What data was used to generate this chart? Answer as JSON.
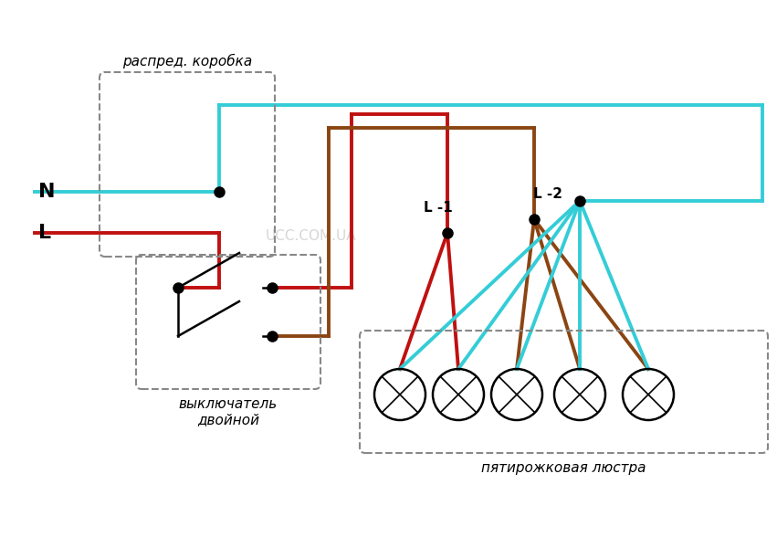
{
  "bg_color": "#ffffff",
  "cyan": "#34cdd7",
  "red": "#c01010",
  "brown": "#8B4513",
  "black": "#000000",
  "label_N": "N",
  "label_L": "L",
  "label_L1": "L -1",
  "label_L2": "L -2",
  "label_box1": "распред. коробка",
  "label_box2": "выключатель\nдвойной",
  "label_box3": "пятирожковая люстра",
  "label_ucc": "UCC.COM.UA",
  "lw_wire": 2.8,
  "lw_switch": 1.8,
  "dot_ms": 8
}
